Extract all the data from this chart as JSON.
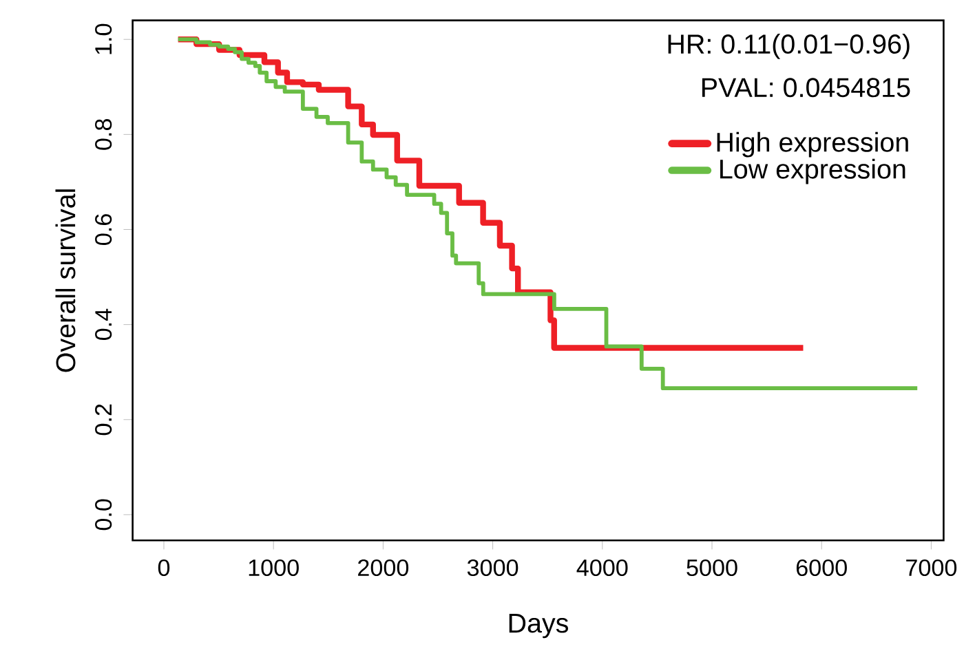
{
  "chart_data": {
    "type": "step",
    "xlabel": "Days",
    "ylabel": "Overall survival",
    "annotations": [
      "HR: 0.11(0.01−0.96)",
      "PVAL: 0.0454815"
    ],
    "xlim": [
      -285,
      7113
    ],
    "ylim": [
      -0.054,
      1.04
    ],
    "xticks": [
      0,
      1000,
      2000,
      3000,
      4000,
      5000,
      6000,
      7000
    ],
    "yticks": [
      {
        "value": 0,
        "label": "0.0"
      },
      {
        "value": 0.2,
        "label": "0.2"
      },
      {
        "value": 0.4,
        "label": "0.4"
      },
      {
        "value": 0.6,
        "label": "0.6"
      },
      {
        "value": 0.8,
        "label": "0.8"
      },
      {
        "value": 1,
        "label": "1.0"
      }
    ],
    "grid": false,
    "legend": "top right",
    "marker": "none",
    "line_style": "solid",
    "series": [
      {
        "name": "High expression",
        "color": "#ee2026",
        "x": [
          130,
          297,
          504,
          690,
          917,
          1041,
          1124,
          1268,
          1413,
          1681,
          1805,
          1908,
          2128,
          2330,
          2693,
          2912,
          3065,
          3176,
          3230,
          3527,
          3560,
          5832
        ],
        "values": [
          1.0,
          0.99,
          0.978,
          0.967,
          0.952,
          0.93,
          0.91,
          0.905,
          0.894,
          0.859,
          0.821,
          0.799,
          0.745,
          0.692,
          0.656,
          0.614,
          0.566,
          0.518,
          0.468,
          0.409,
          0.351,
          0.351
        ]
      },
      {
        "name": "Low expression",
        "color": "#6abd45",
        "x": [
          130,
          297,
          421,
          504,
          586,
          648,
          710,
          772,
          834,
          875,
          937,
          1020,
          1103,
          1268,
          1392,
          1495,
          1681,
          1805,
          1908,
          2032,
          2115,
          2218,
          2466,
          2529,
          2583,
          2632,
          2665,
          2872,
          2913,
          3561,
          4036,
          4358,
          4552,
          6873
        ],
        "values": [
          1.0,
          0.994,
          0.989,
          0.985,
          0.98,
          0.973,
          0.959,
          0.951,
          0.944,
          0.93,
          0.912,
          0.9,
          0.89,
          0.854,
          0.837,
          0.824,
          0.783,
          0.743,
          0.726,
          0.71,
          0.694,
          0.673,
          0.654,
          0.635,
          0.592,
          0.545,
          0.529,
          0.487,
          0.464,
          0.433,
          0.354,
          0.307,
          0.266,
          0.266
        ]
      }
    ]
  }
}
